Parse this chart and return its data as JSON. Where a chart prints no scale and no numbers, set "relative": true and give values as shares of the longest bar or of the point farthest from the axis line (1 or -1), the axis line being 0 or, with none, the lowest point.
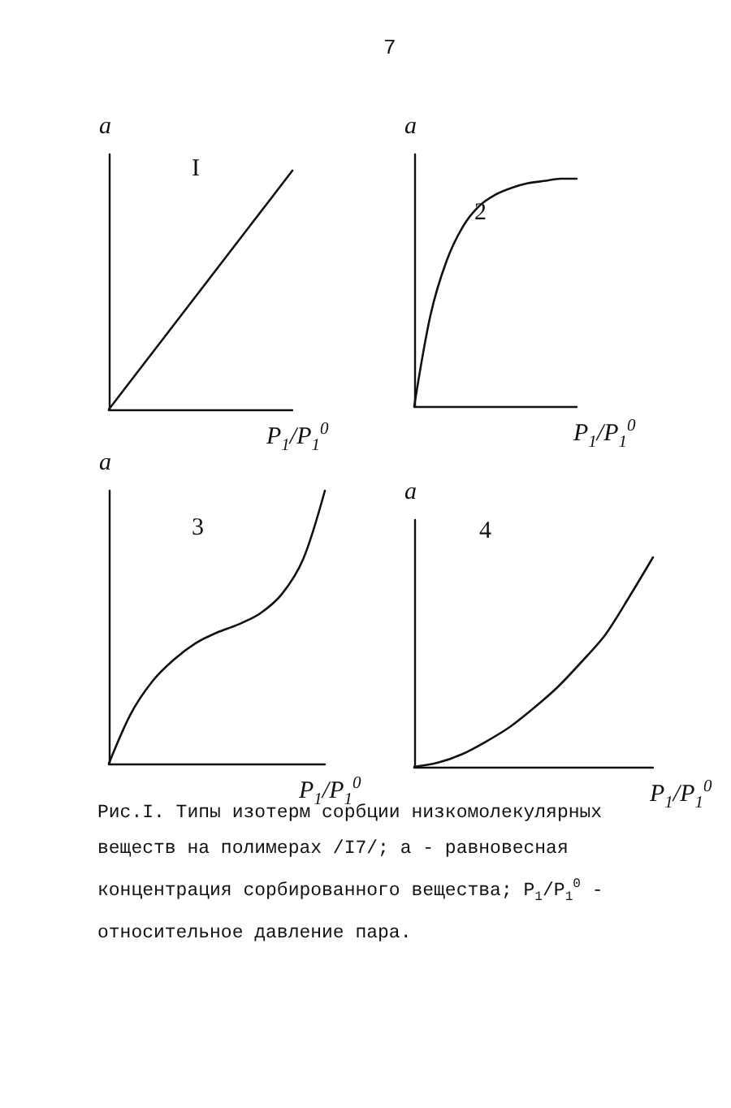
{
  "chart_data": [
    {
      "type": "line",
      "title": "I",
      "xlabel": "P$_{1}$/P$_{1}$$^{0}$",
      "ylabel": "a",
      "relative": true,
      "categories": [
        null,
        null,
        null,
        null,
        null
      ],
      "series": [
        {
          "color": "#111111",
          "values": [
            0,
            0.25,
            0.5,
            0.75,
            1
          ]
        }
      ],
      "grid": false,
      "marker": "none",
      "line_style": "solid",
      "annotations": [
        "7"
      ]
    },
    {
      "type": "line",
      "title": "2",
      "xlabel": "P$_{1}$/P$_{1}$$^{0}$",
      "ylabel": "a",
      "relative": true,
      "categories": [
        null,
        null,
        null,
        null,
        null,
        null,
        null,
        null,
        null,
        null,
        null
      ],
      "series": [
        {
          "color": "#111111",
          "values": [
            0,
            0.4,
            0.64,
            0.79,
            0.88,
            0.93,
            0.96,
            0.98,
            0.99,
            1,
            1
          ]
        }
      ],
      "grid": false,
      "marker": "none",
      "line_style": "solid"
    },
    {
      "type": "line",
      "title": "3",
      "xlabel": "P$_{1}$/P$_{1}$$^{0}$",
      "ylabel": "a",
      "relative": true,
      "categories": [
        null,
        null,
        null,
        null,
        null,
        null,
        null,
        null,
        null,
        null,
        null
      ],
      "series": [
        {
          "color": "#111111",
          "values": [
            0,
            0.18,
            0.3,
            0.38,
            0.44,
            0.48,
            0.51,
            0.55,
            0.62,
            0.75,
            1
          ]
        }
      ],
      "grid": false,
      "marker": "none",
      "line_style": "solid"
    },
    {
      "type": "line",
      "title": "4",
      "xlabel": "P$_{1}$/P$_{1}$$^{0}$",
      "ylabel": "a",
      "relative": true,
      "categories": [
        null,
        null,
        null,
        null,
        null,
        null,
        null,
        null,
        null,
        null,
        null
      ],
      "series": [
        {
          "color": "#111111",
          "values": [
            0,
            0.02,
            0.06,
            0.12,
            0.19,
            0.28,
            0.38,
            0.5,
            0.63,
            0.81,
            1
          ]
        }
      ],
      "grid": false,
      "marker": "none",
      "line_style": "solid",
      "annotations": [
        "Рис.I. Типы изотерм сорбции низкомолекулярных веществ на полимерах /I7/; a - равновесная концентрация сорбированного вещества; P$_{1}$/P$_{1}$$^{0}$ - относительное давление пара."
      ]
    }
  ]
}
